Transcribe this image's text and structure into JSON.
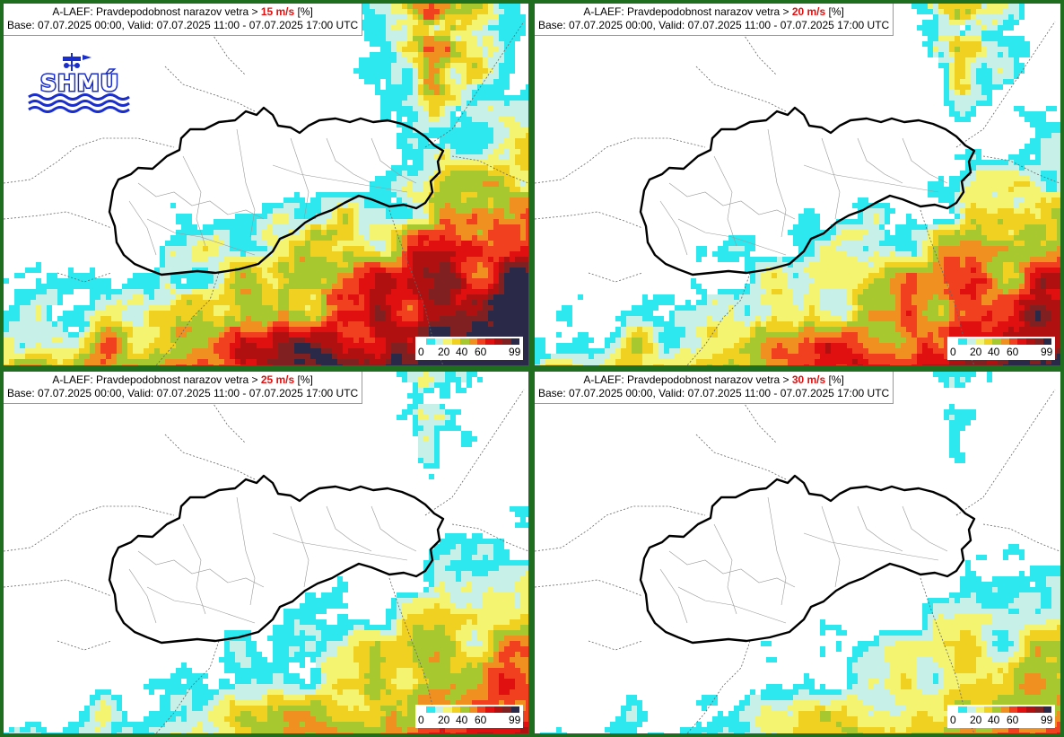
{
  "panels": [
    {
      "title_prefix": "A-LAEF: Pravdepodobnost narazov vetra > ",
      "threshold": "15 m/s",
      "title_suffix": " [%]",
      "subtitle": "Base: 07.07.2025 00:00, Valid: 07.07.2025 11:00 - 07.07.2025 17:00 UTC",
      "intensity": 1.0
    },
    {
      "title_prefix": "A-LAEF: Pravdepodobnost narazov vetra > ",
      "threshold": "20 m/s",
      "title_suffix": " [%]",
      "subtitle": "Base: 07.07.2025 00:00, Valid: 07.07.2025 11:00 - 07.07.2025 17:00 UTC",
      "intensity": 0.75
    },
    {
      "title_prefix": "A-LAEF: Pravdepodobnost narazov vetra > ",
      "threshold": "25 m/s",
      "title_suffix": " [%]",
      "subtitle": "Base: 07.07.2025 00:00, Valid: 07.07.2025 11:00 - 07.07.2025 17:00 UTC",
      "intensity": 0.5
    },
    {
      "title_prefix": "A-LAEF: Pravdepodobnost narazov vetra > ",
      "threshold": "30 m/s",
      "title_suffix": " [%]",
      "subtitle": "Base: 07.07.2025 00:00, Valid: 07.07.2025 11:00 - 07.07.2025 17:00 UTC",
      "intensity": 0.3
    }
  ],
  "legend": {
    "labels": [
      "0",
      "20",
      "40",
      "60",
      "99"
    ],
    "colors": [
      "#ffffff",
      "#2ee8f0",
      "#c6f0e8",
      "#f4f470",
      "#f0d020",
      "#a8c830",
      "#f09020",
      "#f04020",
      "#e01010",
      "#b01010",
      "#802020",
      "#2a2a48"
    ]
  },
  "logo": {
    "text": "SHMÚ",
    "color": "#1a2ecc"
  }
}
